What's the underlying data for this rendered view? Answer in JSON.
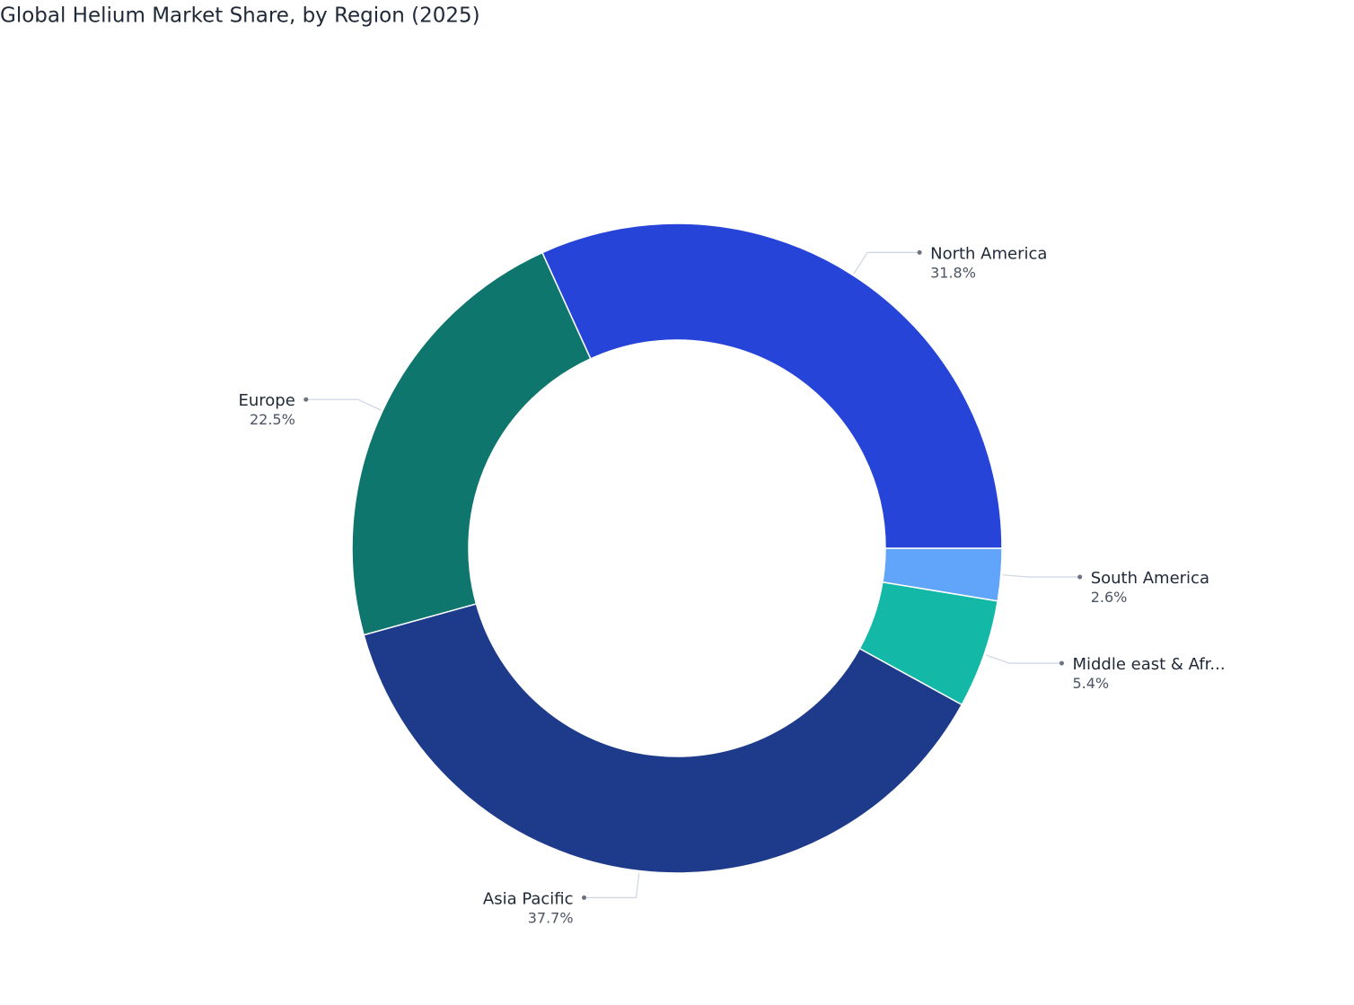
{
  "chart_data": {
    "type": "donut",
    "title": "Global Helium Market Share, by Region (2025)",
    "categories": [
      "South America",
      "Middle east & Afr...",
      "Asia Pacific",
      "Europe",
      "North America"
    ],
    "values": [
      2.6,
      5.4,
      37.7,
      22.5,
      31.8
    ],
    "value_labels": [
      "2.6%",
      "5.4%",
      "37.7%",
      "22.5%",
      "31.8%"
    ],
    "colors": [
      "#60a5fa",
      "#14b8a6",
      "#1e3a8a",
      "#0f766e",
      "#2744d9"
    ]
  }
}
